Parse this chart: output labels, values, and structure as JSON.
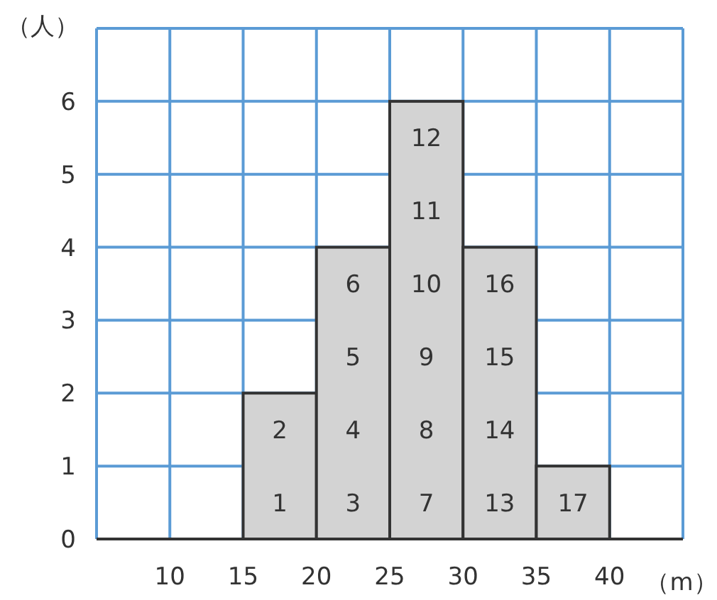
{
  "chart_data": {
    "type": "histogram",
    "xlabel": "（m）",
    "ylabel": "（人）",
    "bins": [
      15,
      20,
      25,
      30,
      35,
      40
    ],
    "values": [
      2,
      4,
      6,
      4,
      1
    ],
    "color": "#d3d3d3",
    "xlim": [
      5,
      45
    ],
    "xticks": [
      10,
      15,
      20,
      25,
      30,
      35,
      40
    ],
    "ylim": [
      0,
      7
    ],
    "yticks": [
      0,
      1,
      2,
      3,
      4,
      5,
      6
    ],
    "grid": true,
    "annotations": [
      "1",
      "2",
      "3",
      "4",
      "5",
      "6",
      "7",
      "8",
      "9",
      "10",
      "11",
      "12",
      "13",
      "14",
      "15",
      "16",
      "17"
    ]
  }
}
